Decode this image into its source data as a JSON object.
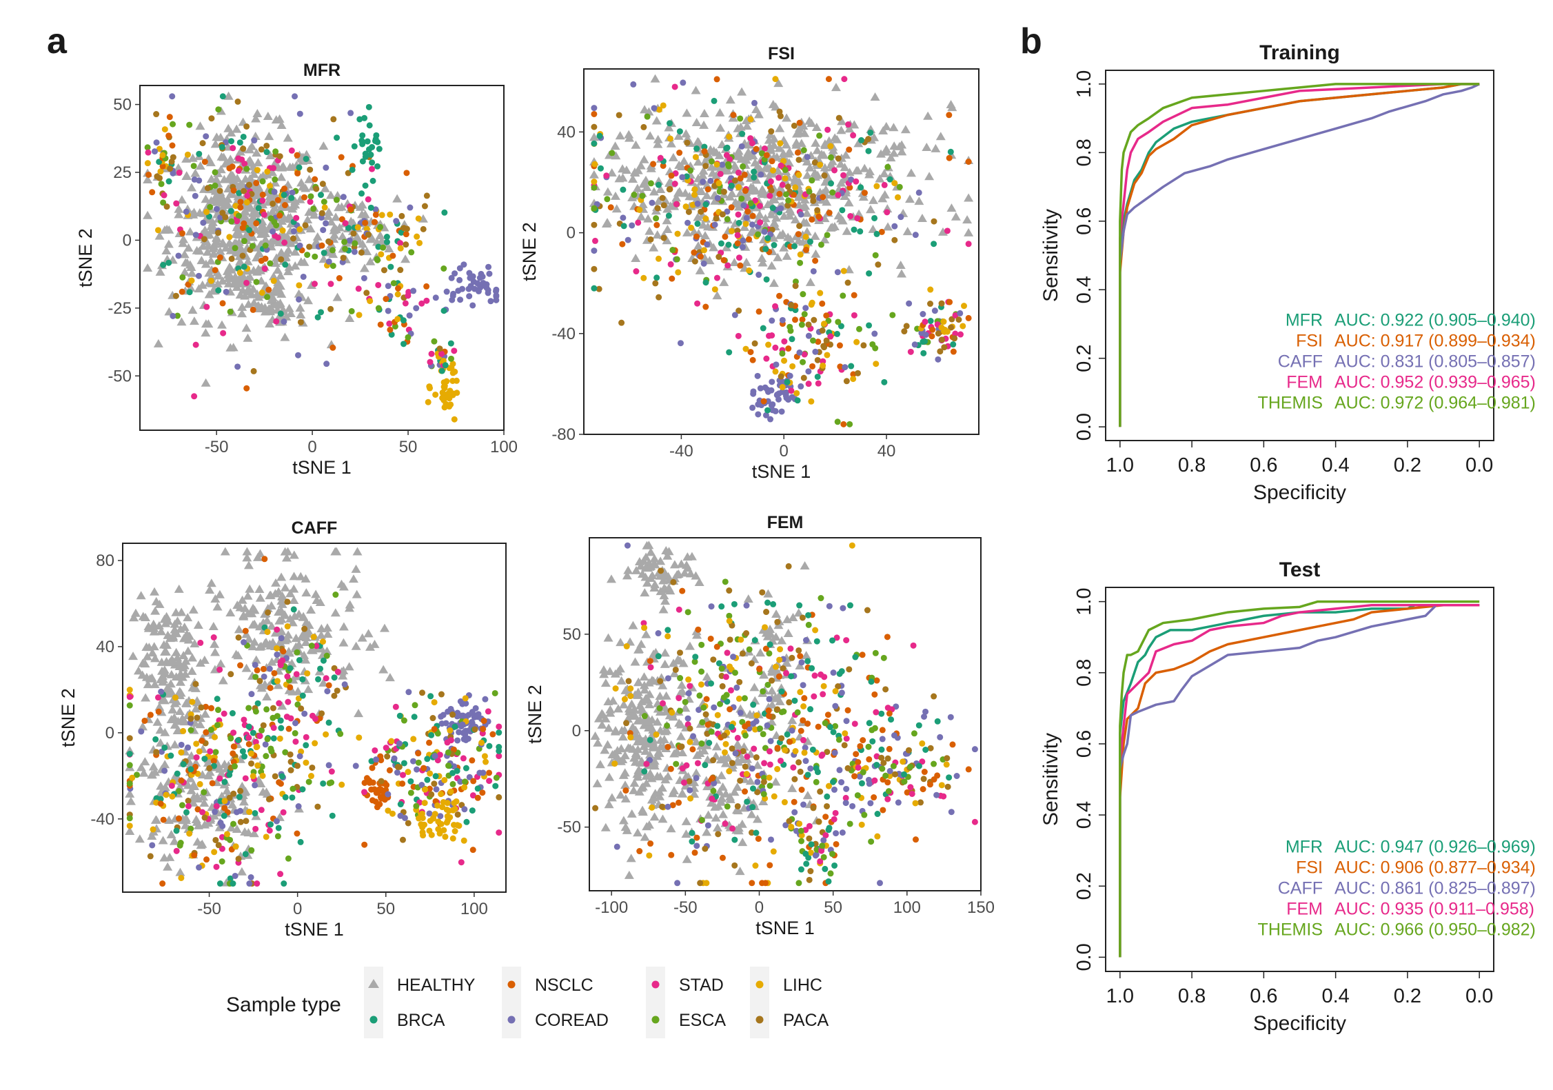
{
  "panel_labels": {
    "a": "a",
    "b": "b"
  },
  "colors": {
    "HEALTHY": "#A9A9A9",
    "BRCA": "#1B9E77",
    "NSCLC": "#D95F02",
    "COREAD": "#7570B3",
    "STAD": "#E7298A",
    "ESCA": "#66A61E",
    "LIHC": "#E6AB02",
    "PACA": "#A6761D"
  },
  "legend": {
    "title": "Sample type",
    "entries": [
      {
        "label": "HEALTHY",
        "shape": "triangle"
      },
      {
        "label": "BRCA",
        "shape": "circle"
      },
      {
        "label": "NSCLC",
        "shape": "circle"
      },
      {
        "label": "COREAD",
        "shape": "circle"
      },
      {
        "label": "STAD",
        "shape": "circle"
      },
      {
        "label": "ESCA",
        "shape": "circle"
      },
      {
        "label": "LIHC",
        "shape": "circle"
      },
      {
        "label": "PACA",
        "shape": "circle"
      }
    ]
  },
  "chart_data": [
    {
      "type": "scatter",
      "title": "MFR",
      "xlabel": "tSNE 1",
      "ylabel": "tSNE 2",
      "xlim": [
        -90,
        100
      ],
      "ylim": [
        -70,
        57
      ],
      "xticks": [
        -50,
        0,
        50,
        100
      ],
      "yticks": [
        -50,
        -25,
        0,
        25,
        50
      ],
      "note": "points approximated as clusters: [cx, cy, sx, sy, n, group]",
      "clusters": [
        [
          -35,
          5,
          20,
          17,
          520,
          "HEALTHY"
        ],
        [
          20,
          3,
          12,
          6,
          70,
          "HEALTHY"
        ],
        [
          -20,
          -25,
          8,
          6,
          40,
          "HEALTHY"
        ],
        [
          -30,
          10,
          28,
          20,
          260,
          "MIXED"
        ],
        [
          30,
          0,
          18,
          10,
          90,
          "MIXED"
        ],
        [
          29,
          36,
          4,
          5,
          25,
          "BRCA"
        ],
        [
          85,
          -17,
          7,
          4,
          45,
          "COREAD"
        ],
        [
          70,
          -55,
          4,
          5,
          35,
          "LIHC"
        ],
        [
          68,
          -44,
          4,
          3,
          25,
          "MIXED"
        ],
        [
          48,
          -25,
          10,
          8,
          40,
          "MIXED"
        ],
        [
          -78,
          32,
          3,
          6,
          30,
          "MIXED"
        ]
      ]
    },
    {
      "type": "scatter",
      "title": "FSI",
      "xlabel": "tSNE 1",
      "ylabel": "tSNE 2",
      "xlim": [
        -78,
        76
      ],
      "ylim": [
        -80,
        65
      ],
      "xticks": [
        -40,
        0,
        40
      ],
      "yticks": [
        -80,
        -40,
        0,
        40
      ],
      "clusters": [
        [
          -10,
          20,
          30,
          15,
          560,
          "HEALTHY"
        ],
        [
          -15,
          12,
          32,
          20,
          420,
          "MIXED"
        ],
        [
          -5,
          -66,
          5,
          4,
          40,
          "COREAD"
        ],
        [
          10,
          -45,
          12,
          12,
          120,
          "MIXED"
        ],
        [
          60,
          -38,
          6,
          6,
          70,
          "MIXED"
        ]
      ]
    },
    {
      "type": "scatter",
      "title": "CAFF",
      "xlabel": "tSNE 1",
      "ylabel": "tSNE 2",
      "xlim": [
        -99,
        118
      ],
      "ylim": [
        -74,
        88
      ],
      "xticks": [
        -50,
        0,
        50,
        100
      ],
      "yticks": [
        -40,
        0,
        40,
        80
      ],
      "clusters": [
        [
          -70,
          30,
          10,
          16,
          140,
          "HEALTHY"
        ],
        [
          -5,
          50,
          20,
          18,
          200,
          "HEALTHY"
        ],
        [
          -55,
          -30,
          20,
          15,
          170,
          "HEALTHY"
        ],
        [
          -40,
          -20,
          30,
          25,
          320,
          "MIXED"
        ],
        [
          95,
          5,
          6,
          5,
          60,
          "COREAD"
        ],
        [
          45,
          -25,
          4,
          5,
          35,
          "NSCLC"
        ],
        [
          80,
          -15,
          18,
          18,
          200,
          "MIXED"
        ],
        [
          80,
          -40,
          6,
          5,
          40,
          "LIHC"
        ],
        [
          0,
          20,
          15,
          20,
          80,
          "MIXED"
        ]
      ]
    },
    {
      "type": "scatter",
      "title": "FEM",
      "xlabel": "tSNE 1",
      "ylabel": "tSNE 2",
      "xlim": [
        -115,
        150
      ],
      "ylim": [
        -83,
        100
      ],
      "xticks": [
        -100,
        -50,
        0,
        50,
        100,
        150
      ],
      "yticks": [
        -50,
        0,
        50
      ],
      "clusters": [
        [
          -65,
          82,
          12,
          6,
          60,
          "HEALTHY"
        ],
        [
          -80,
          0,
          15,
          25,
          220,
          "HEALTHY"
        ],
        [
          -30,
          -20,
          25,
          20,
          140,
          "HEALTHY"
        ],
        [
          10,
          35,
          15,
          20,
          60,
          "HEALTHY"
        ],
        [
          0,
          0,
          45,
          35,
          480,
          "MIXED"
        ],
        [
          90,
          -20,
          25,
          12,
          120,
          "MIXED"
        ],
        [
          40,
          -60,
          8,
          8,
          50,
          "MIXED"
        ]
      ]
    },
    {
      "type": "line",
      "title": "Training",
      "xlabel": "Specificity",
      "ylabel": "Sensitivity",
      "xlim": [
        1.0,
        0.0
      ],
      "ylim": [
        0.0,
        1.0
      ],
      "xticks": [
        1.0,
        0.8,
        0.6,
        0.4,
        0.2,
        0.0
      ],
      "yticks": [
        0.0,
        0.2,
        0.4,
        0.6,
        0.8,
        1.0
      ],
      "series": [
        {
          "name": "MFR",
          "auc_text": "AUC: 0.922 (0.905–0.940)",
          "color": "#1B9E77",
          "x": [
            1,
            1,
            0.99,
            0.98,
            0.96,
            0.94,
            0.92,
            0.9,
            0.85,
            0.8,
            0.7,
            0.6,
            0.5,
            0.4,
            0.3,
            0.2,
            0.1,
            0.05,
            0
          ],
          "y": [
            0,
            0.5,
            0.6,
            0.65,
            0.72,
            0.75,
            0.8,
            0.83,
            0.87,
            0.89,
            0.91,
            0.93,
            0.95,
            0.96,
            0.97,
            0.98,
            0.99,
            1,
            1
          ]
        },
        {
          "name": "FSI",
          "auc_text": "AUC: 0.917 (0.899–0.934)",
          "color": "#D95F02",
          "x": [
            1,
            1,
            0.99,
            0.98,
            0.96,
            0.94,
            0.92,
            0.9,
            0.85,
            0.8,
            0.7,
            0.6,
            0.5,
            0.4,
            0.3,
            0.2,
            0.1,
            0.05,
            0
          ],
          "y": [
            0,
            0.45,
            0.57,
            0.64,
            0.71,
            0.74,
            0.79,
            0.81,
            0.84,
            0.88,
            0.91,
            0.93,
            0.95,
            0.96,
            0.97,
            0.98,
            0.99,
            1,
            1
          ]
        },
        {
          "name": "CAFF",
          "auc_text": "AUC: 0.831 (0.805–0.857)",
          "color": "#7570B3",
          "x": [
            1,
            1,
            0.99,
            0.98,
            0.96,
            0.92,
            0.88,
            0.82,
            0.75,
            0.7,
            0.6,
            0.5,
            0.4,
            0.3,
            0.25,
            0.15,
            0.1,
            0.05,
            0.02,
            0
          ],
          "y": [
            0,
            0.48,
            0.57,
            0.62,
            0.64,
            0.67,
            0.7,
            0.74,
            0.76,
            0.78,
            0.81,
            0.84,
            0.87,
            0.9,
            0.92,
            0.95,
            0.97,
            0.98,
            0.99,
            1
          ]
        },
        {
          "name": "FEM",
          "auc_text": "AUC: 0.952 (0.939–0.965)",
          "color": "#E7298A",
          "x": [
            1,
            1,
            0.99,
            0.98,
            0.97,
            0.95,
            0.92,
            0.88,
            0.8,
            0.7,
            0.6,
            0.5,
            0.4,
            0.3,
            0.2,
            0.1,
            0
          ],
          "y": [
            0,
            0.55,
            0.65,
            0.75,
            0.8,
            0.84,
            0.86,
            0.89,
            0.93,
            0.94,
            0.96,
            0.98,
            0.985,
            0.99,
            0.995,
            1,
            1
          ]
        },
        {
          "name": "THEMIS",
          "auc_text": "AUC: 0.972 (0.964–0.981)",
          "color": "#66A61E",
          "x": [
            1,
            1,
            0.995,
            0.99,
            0.98,
            0.97,
            0.95,
            0.92,
            0.88,
            0.8,
            0.7,
            0.6,
            0.5,
            0.4,
            0.3,
            0.2,
            0
          ],
          "y": [
            0,
            0.6,
            0.75,
            0.8,
            0.83,
            0.86,
            0.88,
            0.9,
            0.93,
            0.96,
            0.97,
            0.98,
            0.99,
            1,
            1,
            1,
            1
          ]
        }
      ]
    },
    {
      "type": "line",
      "title": "Test",
      "xlabel": "Specificity",
      "ylabel": "Sensitivity",
      "xlim": [
        1.0,
        0.0
      ],
      "ylim": [
        0.0,
        1.0
      ],
      "xticks": [
        1.0,
        0.8,
        0.6,
        0.4,
        0.2,
        0.0
      ],
      "yticks": [
        0.0,
        0.2,
        0.4,
        0.6,
        0.8,
        1.0
      ],
      "series": [
        {
          "name": "MFR",
          "auc_text": "AUC: 0.947 (0.926–0.969)",
          "color": "#1B9E77",
          "x": [
            1,
            1,
            0.99,
            0.97,
            0.95,
            0.93,
            0.92,
            0.9,
            0.86,
            0.8,
            0.75,
            0.7,
            0.6,
            0.5,
            0.4,
            0.3,
            0.2,
            0.18,
            0
          ],
          "y": [
            0,
            0.63,
            0.72,
            0.77,
            0.83,
            0.85,
            0.87,
            0.9,
            0.92,
            0.92,
            0.93,
            0.94,
            0.96,
            0.97,
            0.97,
            0.98,
            0.98,
            0.99,
            0.99
          ]
        },
        {
          "name": "FSI",
          "auc_text": "AUC: 0.906 (0.877–0.934)",
          "color": "#D95F02",
          "x": [
            1,
            1,
            0.99,
            0.98,
            0.95,
            0.93,
            0.9,
            0.85,
            0.8,
            0.75,
            0.7,
            0.6,
            0.5,
            0.4,
            0.35,
            0.3,
            0.2,
            0.1,
            0
          ],
          "y": [
            0,
            0.45,
            0.6,
            0.67,
            0.7,
            0.77,
            0.8,
            0.81,
            0.83,
            0.86,
            0.88,
            0.9,
            0.92,
            0.94,
            0.95,
            0.97,
            0.98,
            0.99,
            0.99
          ]
        },
        {
          "name": "CAFF",
          "auc_text": "AUC: 0.861 (0.825–0.897)",
          "color": "#7570B3",
          "x": [
            1,
            1,
            0.99,
            0.98,
            0.97,
            0.95,
            0.9,
            0.85,
            0.83,
            0.8,
            0.75,
            0.7,
            0.6,
            0.5,
            0.45,
            0.4,
            0.3,
            0.2,
            0.15,
            0.12,
            0
          ],
          "y": [
            0,
            0.53,
            0.57,
            0.6,
            0.68,
            0.69,
            0.71,
            0.72,
            0.75,
            0.79,
            0.82,
            0.85,
            0.86,
            0.87,
            0.89,
            0.9,
            0.93,
            0.95,
            0.96,
            0.99,
            0.99
          ]
        },
        {
          "name": "FEM",
          "auc_text": "AUC: 0.935 (0.911–0.958)",
          "color": "#E7298A",
          "x": [
            1,
            1,
            0.99,
            0.98,
            0.95,
            0.92,
            0.9,
            0.85,
            0.8,
            0.75,
            0.7,
            0.6,
            0.55,
            0.5,
            0.4,
            0.3,
            0.2,
            0.1,
            0
          ],
          "y": [
            0,
            0.55,
            0.65,
            0.74,
            0.77,
            0.8,
            0.86,
            0.88,
            0.89,
            0.92,
            0.93,
            0.94,
            0.96,
            0.97,
            0.98,
            0.99,
            0.99,
            0.99,
            0.99
          ]
        },
        {
          "name": "THEMIS",
          "auc_text": "AUC: 0.966 (0.950–0.982)",
          "color": "#66A61E",
          "x": [
            1,
            1,
            0.995,
            0.99,
            0.98,
            0.97,
            0.95,
            0.92,
            0.88,
            0.8,
            0.7,
            0.6,
            0.5,
            0.45,
            0.3,
            0.12,
            0
          ],
          "y": [
            0,
            0.65,
            0.74,
            0.8,
            0.85,
            0.85,
            0.86,
            0.92,
            0.94,
            0.95,
            0.97,
            0.98,
            0.985,
            1,
            1,
            1,
            1
          ]
        }
      ]
    }
  ]
}
